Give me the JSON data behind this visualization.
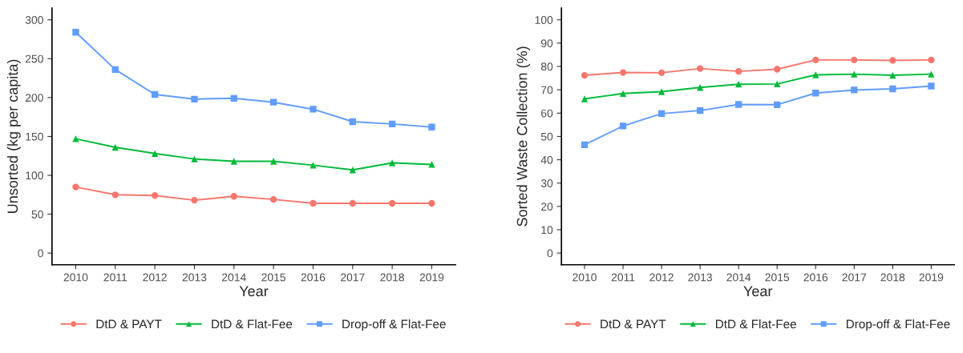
{
  "chart_data": [
    {
      "type": "line",
      "xlabel": "Year",
      "ylabel": "Unsorted (kg per capita)",
      "x": [
        2010,
        2011,
        2012,
        2013,
        2014,
        2015,
        2016,
        2017,
        2018,
        2019
      ],
      "xlim": [
        2009.4,
        2019.6
      ],
      "xticks": [
        2010,
        2011,
        2012,
        2013,
        2014,
        2015,
        2016,
        2017,
        2018,
        2019
      ],
      "ylim": [
        -15,
        315
      ],
      "yticks": [
        0,
        50,
        100,
        150,
        200,
        250,
        300
      ],
      "grid": false,
      "legend": "bottom",
      "line_style": "solid",
      "series": [
        {
          "name": "DtD & PAYT",
          "color": "#f8766d",
          "marker": "circle",
          "values": [
            85,
            75,
            74,
            68,
            73,
            69,
            64,
            64,
            64,
            64
          ]
        },
        {
          "name": "DtD & Flat-Fee",
          "color": "#00ba38",
          "marker": "triangle",
          "values": [
            147,
            136,
            128,
            121,
            118,
            118,
            113,
            107,
            116,
            114
          ]
        },
        {
          "name": "Drop-off & Flat-Fee",
          "color": "#619cff",
          "marker": "square",
          "values": [
            284,
            236,
            204,
            198,
            199,
            194,
            185,
            169,
            166,
            162
          ]
        }
      ]
    },
    {
      "type": "line",
      "xlabel": "Year",
      "ylabel": "Sorted Waste Collection (%)",
      "x": [
        2010,
        2011,
        2012,
        2013,
        2014,
        2015,
        2016,
        2017,
        2018,
        2019
      ],
      "xlim": [
        2009.4,
        2019.6
      ],
      "xticks": [
        2010,
        2011,
        2012,
        2013,
        2014,
        2015,
        2016,
        2017,
        2018,
        2019
      ],
      "ylim": [
        -5,
        105
      ],
      "yticks": [
        0,
        10,
        20,
        30,
        40,
        50,
        60,
        70,
        80,
        90,
        100
      ],
      "grid": false,
      "legend": "bottom",
      "line_style": "solid",
      "series": [
        {
          "name": "DtD & PAYT",
          "color": "#f8766d",
          "marker": "circle",
          "values": [
            76.2,
            77.4,
            77.3,
            79.1,
            77.9,
            78.8,
            82.8,
            82.8,
            82.6,
            82.8
          ]
        },
        {
          "name": "DtD & Flat-Fee",
          "color": "#00ba38",
          "marker": "triangle",
          "values": [
            66.1,
            68.4,
            69.2,
            71.0,
            72.4,
            72.5,
            76.4,
            76.7,
            76.2,
            76.7
          ]
        },
        {
          "name": "Drop-off & Flat-Fee",
          "color": "#619cff",
          "marker": "square",
          "values": [
            46.4,
            54.5,
            59.8,
            61.1,
            63.7,
            63.6,
            68.6,
            69.9,
            70.4,
            71.6
          ]
        }
      ]
    }
  ]
}
